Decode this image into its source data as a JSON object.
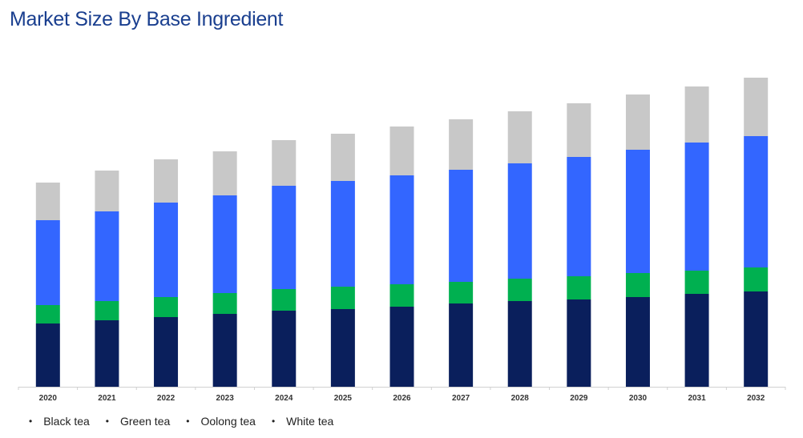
{
  "chart_data": {
    "type": "bar",
    "stacked": true,
    "title": "Market Size By Base Ingredient",
    "xlabel": "",
    "ylabel": "",
    "y_axis_shown": false,
    "grid": false,
    "legend_position": "bottom-left",
    "categories": [
      "2020",
      "2021",
      "2022",
      "2023",
      "2024",
      "2025",
      "2026",
      "2027",
      "2028",
      "2029",
      "2030",
      "2031",
      "2032"
    ],
    "ylim": [
      0,
      390
    ],
    "series": [
      {
        "name": "Black tea",
        "color": "#0a1f5c",
        "values": [
          79,
          83,
          87,
          91,
          95,
          97,
          100,
          104,
          107,
          109,
          112,
          116,
          119
        ]
      },
      {
        "name": "Green tea",
        "color": "#00b050",
        "values": [
          23,
          24,
          25,
          26,
          27,
          28,
          28,
          27,
          28,
          29,
          30,
          29,
          30
        ]
      },
      {
        "name": "Oolong tea",
        "color": "#3366ff",
        "values": [
          106,
          112,
          118,
          122,
          129,
          132,
          136,
          140,
          144,
          149,
          154,
          160,
          164
        ]
      },
      {
        "name": "White tea",
        "color": "#c8c8c8",
        "values": [
          47,
          51,
          54,
          55,
          57,
          59,
          61,
          63,
          65,
          67,
          69,
          70,
          73
        ]
      }
    ]
  }
}
